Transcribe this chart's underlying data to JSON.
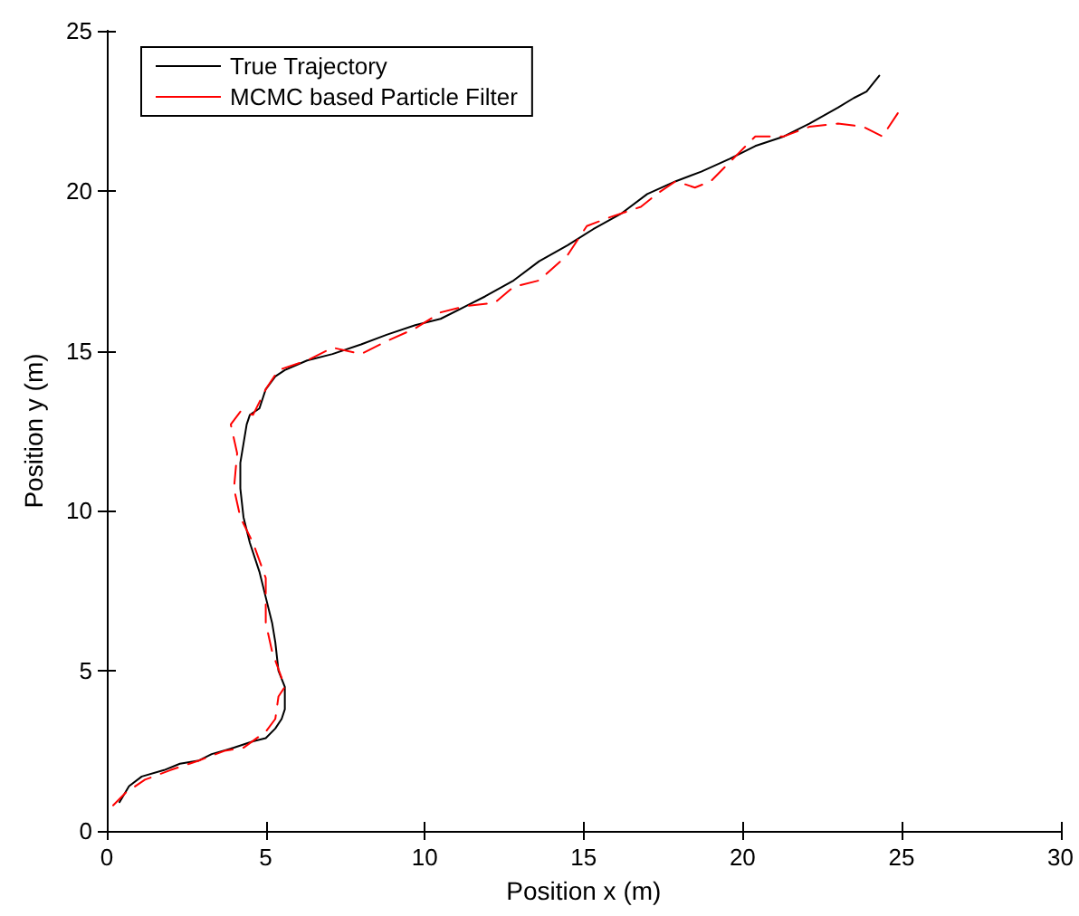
{
  "chart_data": {
    "type": "line",
    "xlabel": "Position x (m)",
    "ylabel": "Position y (m)",
    "xlim": [
      0,
      30
    ],
    "ylim": [
      0,
      25
    ],
    "xticks": [
      0,
      5,
      10,
      15,
      20,
      25,
      30
    ],
    "yticks": [
      0,
      5,
      10,
      15,
      20,
      25
    ],
    "grid": false,
    "legend": "top left",
    "marker": "none",
    "series": [
      {
        "name": "True Trajectory",
        "color": "#000000",
        "line_style": "solid",
        "x": [
          0.4,
          0.7,
          1.1,
          1.8,
          2.3,
          2.9,
          3.3,
          4.0,
          4.6,
          5.0,
          5.3,
          5.5,
          5.6,
          5.6,
          5.4,
          5.3,
          5.2,
          5.0,
          4.8,
          4.5,
          4.3,
          4.2,
          4.2,
          4.4,
          4.5,
          4.8,
          5.0,
          5.3,
          5.6,
          6.3,
          7.1,
          8.0,
          8.8,
          9.7,
          10.5,
          11.3,
          11.9,
          12.8,
          13.6,
          14.5,
          15.3,
          16.2,
          17.0,
          17.9,
          18.7,
          19.6,
          20.4,
          21.3,
          22.1,
          23.0,
          23.5,
          23.9,
          24.3
        ],
        "values": [
          0.9,
          1.4,
          1.7,
          1.9,
          2.1,
          2.2,
          2.4,
          2.6,
          2.8,
          2.9,
          3.2,
          3.5,
          3.8,
          4.5,
          5.0,
          5.9,
          6.5,
          7.3,
          8.1,
          9.0,
          9.8,
          10.7,
          11.5,
          12.7,
          13.0,
          13.2,
          13.8,
          14.2,
          14.4,
          14.7,
          14.9,
          15.2,
          15.5,
          15.8,
          16.0,
          16.4,
          16.7,
          17.2,
          17.8,
          18.3,
          18.8,
          19.3,
          19.9,
          20.3,
          20.6,
          21.0,
          21.4,
          21.7,
          22.1,
          22.6,
          22.9,
          23.1,
          23.6
        ]
      },
      {
        "name": "MCMC based Particle Filter",
        "color": "#ff0000",
        "line_style": "dashed",
        "x": [
          0.2,
          0.6,
          1.2,
          2.0,
          2.9,
          3.7,
          4.3,
          5.0,
          5.3,
          5.4,
          5.6,
          5.2,
          5.0,
          5.0,
          4.6,
          4.2,
          4.0,
          4.1,
          3.9,
          4.2,
          4.6,
          5.0,
          5.4,
          6.3,
          7.1,
          8.0,
          8.8,
          9.7,
          10.5,
          11.3,
          12.2,
          12.8,
          13.6,
          14.5,
          15.1,
          15.9,
          16.8,
          17.3,
          17.9,
          18.5,
          19.0,
          19.9,
          20.4,
          21.3,
          22.1,
          23.0,
          23.8,
          24.4,
          25.0
        ],
        "values": [
          0.8,
          1.2,
          1.6,
          1.9,
          2.2,
          2.5,
          2.6,
          3.1,
          3.5,
          4.2,
          4.5,
          5.6,
          6.5,
          7.9,
          9.0,
          9.8,
          10.7,
          11.8,
          12.7,
          13.1,
          13.0,
          13.8,
          14.4,
          14.7,
          15.1,
          14.9,
          15.3,
          15.7,
          16.2,
          16.4,
          16.5,
          17.0,
          17.2,
          18.0,
          18.9,
          19.2,
          19.5,
          19.9,
          20.3,
          20.1,
          20.3,
          21.2,
          21.7,
          21.7,
          22.0,
          22.1,
          22.0,
          21.7,
          22.6
        ]
      }
    ]
  }
}
